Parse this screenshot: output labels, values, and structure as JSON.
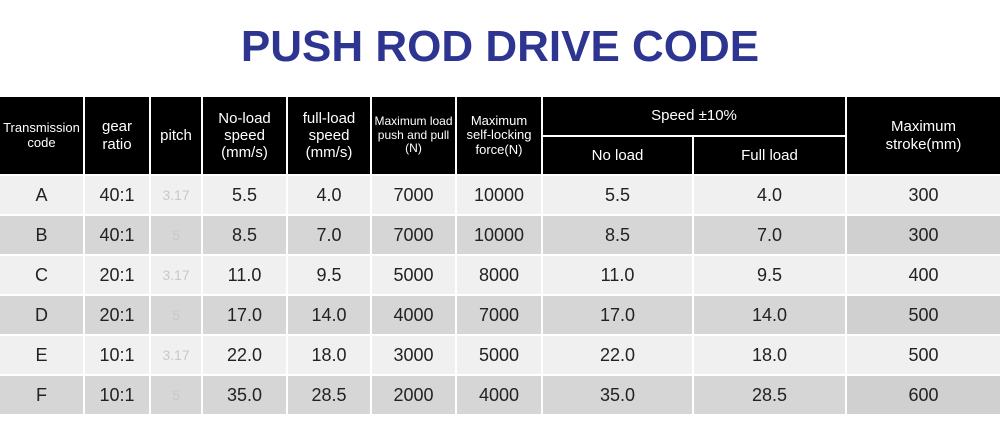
{
  "title": "PUSH ROD DRIVE CODE",
  "headers": {
    "transmission_code": "Transmission code",
    "gear_ratio": "gear ratio",
    "pitch": "pitch",
    "noload_speed": "No-load speed (mm/s)",
    "fullload_speed": "full-load speed (mm/s)",
    "max_load": "Maximum load push and pull (N)",
    "self_locking": "Maximum self-locking force(N)",
    "speed_group": "Speed ±10%",
    "no_load": "No load",
    "full_load": "Full load",
    "max_stroke": "Maximum stroke(mm)"
  },
  "rows": [
    {
      "code": "A",
      "ratio": "40:1",
      "pitch": "3.17",
      "noload": "5.5",
      "fullload": "4.0",
      "maxload": "7000",
      "selflock": "10000",
      "sp_no": "5.5",
      "sp_full": "4.0",
      "stroke": "300"
    },
    {
      "code": "B",
      "ratio": "40:1",
      "pitch": "5",
      "noload": "8.5",
      "fullload": "7.0",
      "maxload": "7000",
      "selflock": "10000",
      "sp_no": "8.5",
      "sp_full": "7.0",
      "stroke": "300"
    },
    {
      "code": "C",
      "ratio": "20:1",
      "pitch": "3.17",
      "noload": "11.0",
      "fullload": "9.5",
      "maxload": "5000",
      "selflock": "8000",
      "sp_no": "11.0",
      "sp_full": "9.5",
      "stroke": "400"
    },
    {
      "code": "D",
      "ratio": "20:1",
      "pitch": "5",
      "noload": "17.0",
      "fullload": "14.0",
      "maxload": "4000",
      "selflock": "7000",
      "sp_no": "17.0",
      "sp_full": "14.0",
      "stroke": "500"
    },
    {
      "code": "E",
      "ratio": "10:1",
      "pitch": "3.17",
      "noload": "22.0",
      "fullload": "18.0",
      "maxload": "3000",
      "selflock": "5000",
      "sp_no": "22.0",
      "sp_full": "18.0",
      "stroke": "500"
    },
    {
      "code": "F",
      "ratio": "10:1",
      "pitch": "5",
      "noload": "35.0",
      "fullload": "28.5",
      "maxload": "2000",
      "selflock": "4000",
      "sp_no": "35.0",
      "sp_full": "28.5",
      "stroke": "600"
    }
  ],
  "colors": {
    "title": "#2e3591",
    "header_bg": "#000000",
    "header_text": "#ffffff",
    "row_light": "#f0f0f0",
    "row_dark": "#d6d6d6"
  }
}
